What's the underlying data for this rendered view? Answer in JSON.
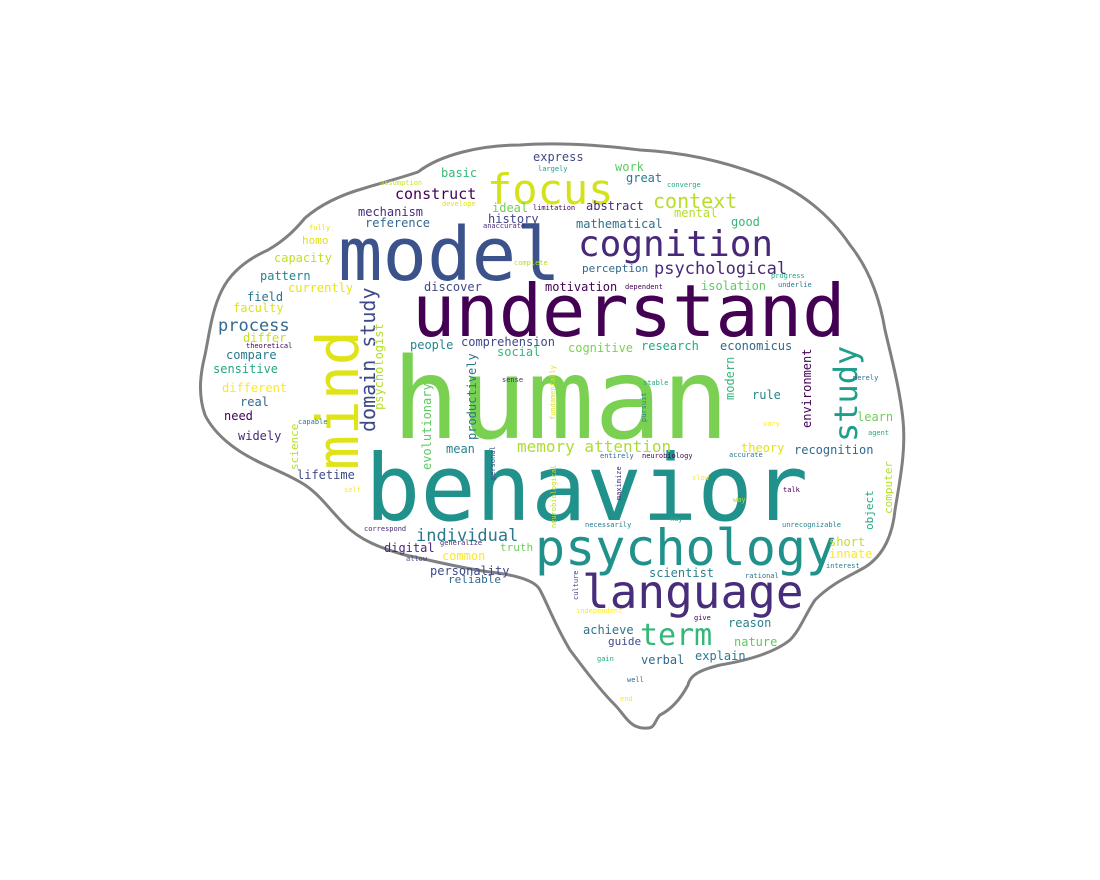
{
  "palette": {
    "outline": "#808080",
    "background": "#ffffff",
    "colors": [
      "#440154",
      "#482878",
      "#3e4989",
      "#31688e",
      "#26828e",
      "#1f9e89",
      "#35b779",
      "#6ece58",
      "#b5de2b",
      "#fde725"
    ]
  },
  "words": [
    {
      "text": "human",
      "color": "#7ad151"
    },
    {
      "text": "behavior",
      "color": "#21918c"
    },
    {
      "text": "understand",
      "color": "#440154"
    },
    {
      "text": "model",
      "color": "#3b528b"
    },
    {
      "text": "mind",
      "color": "#dfe318"
    },
    {
      "text": "psychology",
      "color": "#21918c"
    },
    {
      "text": "language",
      "color": "#472d7b"
    },
    {
      "text": "cognition",
      "color": "#482878"
    },
    {
      "text": "focus",
      "color": "#d2e21b"
    },
    {
      "text": "study",
      "color": "#1f9e89"
    },
    {
      "text": "term",
      "color": "#35b779"
    },
    {
      "text": "domain study",
      "color": "#3e4989"
    },
    {
      "text": "context",
      "color": "#b8de29"
    },
    {
      "text": "psychological",
      "color": "#482878"
    },
    {
      "text": "memory attention",
      "color": "#addc30"
    },
    {
      "text": "individual",
      "color": "#2a788e"
    },
    {
      "text": "process",
      "color": "#31688e"
    },
    {
      "text": "construct",
      "color": "#440154"
    },
    {
      "text": "express",
      "color": "#3e4989"
    },
    {
      "text": "work",
      "color": "#5ec962"
    },
    {
      "text": "basic",
      "color": "#35b779"
    },
    {
      "text": "great",
      "color": "#2a788e"
    },
    {
      "text": "ideal",
      "color": "#6ece58"
    },
    {
      "text": "abstract",
      "color": "#482878"
    },
    {
      "text": "mental",
      "color": "#b5de2b"
    },
    {
      "text": "mechanism",
      "color": "#472d7b"
    },
    {
      "text": "history",
      "color": "#414487"
    },
    {
      "text": "reference",
      "color": "#31688e"
    },
    {
      "text": "mathematical",
      "color": "#2c728e"
    },
    {
      "text": "good",
      "color": "#35b779"
    },
    {
      "text": "homo",
      "color": "#dfe318"
    },
    {
      "text": "capacity",
      "color": "#c2df23"
    },
    {
      "text": "perception",
      "color": "#31688e"
    },
    {
      "text": "pattern",
      "color": "#26828e"
    },
    {
      "text": "currently",
      "color": "#e5e419"
    },
    {
      "text": "discover",
      "color": "#3e4989"
    },
    {
      "text": "motivation",
      "color": "#440154"
    },
    {
      "text": "isolation",
      "color": "#5ec962"
    },
    {
      "text": "field",
      "color": "#2c728e"
    },
    {
      "text": "faculty",
      "color": "#dfe318"
    },
    {
      "text": "psychologist",
      "color": "#b5de2b"
    },
    {
      "text": "differ",
      "color": "#c8e020"
    },
    {
      "text": "compare",
      "color": "#2a788e"
    },
    {
      "text": "sensitive",
      "color": "#22a884"
    },
    {
      "text": "different",
      "color": "#fde725"
    },
    {
      "text": "real",
      "color": "#31688e"
    },
    {
      "text": "need",
      "color": "#440154"
    },
    {
      "text": "widely",
      "color": "#482878"
    },
    {
      "text": "science",
      "color": "#b5de2b"
    },
    {
      "text": "lifetime",
      "color": "#3e4989"
    },
    {
      "text": "people",
      "color": "#26828e"
    },
    {
      "text": "comprehension",
      "color": "#3e4989"
    },
    {
      "text": "social",
      "color": "#35b779"
    },
    {
      "text": "cognitive",
      "color": "#7ad151"
    },
    {
      "text": "research",
      "color": "#22a884"
    },
    {
      "text": "economicus",
      "color": "#31688e"
    },
    {
      "text": "evolutionary",
      "color": "#5ec962"
    },
    {
      "text": "productively",
      "color": "#2a788e"
    },
    {
      "text": "mean",
      "color": "#26828e"
    },
    {
      "text": "modern",
      "color": "#35b779"
    },
    {
      "text": "environment",
      "color": "#440154"
    },
    {
      "text": "rule",
      "color": "#26828e"
    },
    {
      "text": "learn",
      "color": "#6ece58"
    },
    {
      "text": "theory",
      "color": "#dfe318"
    },
    {
      "text": "recognition",
      "color": "#31688e"
    },
    {
      "text": "short",
      "color": "#c2df23"
    },
    {
      "text": "innate",
      "color": "#fde725"
    },
    {
      "text": "object",
      "color": "#22a884"
    },
    {
      "text": "computer",
      "color": "#b5de2b"
    },
    {
      "text": "digital",
      "color": "#482878"
    },
    {
      "text": "common",
      "color": "#fde725"
    },
    {
      "text": "truth",
      "color": "#6ece58"
    },
    {
      "text": "personality",
      "color": "#3e4989"
    },
    {
      "text": "reliable",
      "color": "#31688e"
    },
    {
      "text": "scientist",
      "color": "#26828e"
    },
    {
      "text": "achieve",
      "color": "#2c728e"
    },
    {
      "text": "guide",
      "color": "#3e4989"
    },
    {
      "text": "reason",
      "color": "#26828e"
    },
    {
      "text": "nature",
      "color": "#5ec962"
    },
    {
      "text": "verbal",
      "color": "#31688e"
    },
    {
      "text": "explain",
      "color": "#2a788e"
    },
    {
      "text": "assumption",
      "color": "#d2e21b"
    },
    {
      "text": "largely",
      "color": "#1f9e89"
    },
    {
      "text": "limitation",
      "color": "#440154"
    },
    {
      "text": "develope",
      "color": "#dfe318"
    },
    {
      "text": "converge",
      "color": "#22a884"
    },
    {
      "text": "fully",
      "color": "#dfe318"
    },
    {
      "text": "anaccurate",
      "color": "#482878"
    },
    {
      "text": "complete",
      "color": "#b5de2b"
    },
    {
      "text": "progress",
      "color": "#22a884"
    },
    {
      "text": "underlie",
      "color": "#2a788e"
    },
    {
      "text": "dependent",
      "color": "#440154"
    },
    {
      "text": "theoretical",
      "color": "#440154"
    },
    {
      "text": "sense",
      "color": "#482878"
    },
    {
      "text": "fundamentally",
      "color": "#dfe318"
    },
    {
      "text": "stable",
      "color": "#22a884"
    },
    {
      "text": "merely",
      "color": "#31688e"
    },
    {
      "text": "capable",
      "color": "#2a788e"
    },
    {
      "text": "pursuit",
      "color": "#26828e"
    },
    {
      "text": "vary",
      "color": "#fde725"
    },
    {
      "text": "agent",
      "color": "#22a884"
    },
    {
      "text": "entirely",
      "color": "#31688e"
    },
    {
      "text": "neurobiology",
      "color": "#440154"
    },
    {
      "text": "accurate",
      "color": "#2c728e"
    },
    {
      "text": "personal",
      "color": "#3e4989"
    },
    {
      "text": "neurobiological",
      "color": "#c2df23"
    },
    {
      "text": "maximize",
      "color": "#472d7b"
    },
    {
      "text": "slow",
      "color": "#fde725"
    },
    {
      "text": "self",
      "color": "#fde725"
    },
    {
      "text": "way",
      "color": "#b5de2b"
    },
    {
      "text": "talk",
      "color": "#440154"
    },
    {
      "text": "key",
      "color": "#22a884"
    },
    {
      "text": "correspond",
      "color": "#482878"
    },
    {
      "text": "necessarily",
      "color": "#2a788e"
    },
    {
      "text": "unrecognizable",
      "color": "#26828e"
    },
    {
      "text": "generalize",
      "color": "#482878"
    },
    {
      "text": "allow",
      "color": "#3e4989"
    },
    {
      "text": "culture",
      "color": "#414487"
    },
    {
      "text": "rational",
      "color": "#2c728e"
    },
    {
      "text": "interest",
      "color": "#26828e"
    },
    {
      "text": "independent",
      "color": "#fde725"
    },
    {
      "text": "give",
      "color": "#440154"
    },
    {
      "text": "gain",
      "color": "#22a884"
    },
    {
      "text": "well",
      "color": "#31688e"
    },
    {
      "text": "end",
      "color": "#fde725"
    }
  ]
}
